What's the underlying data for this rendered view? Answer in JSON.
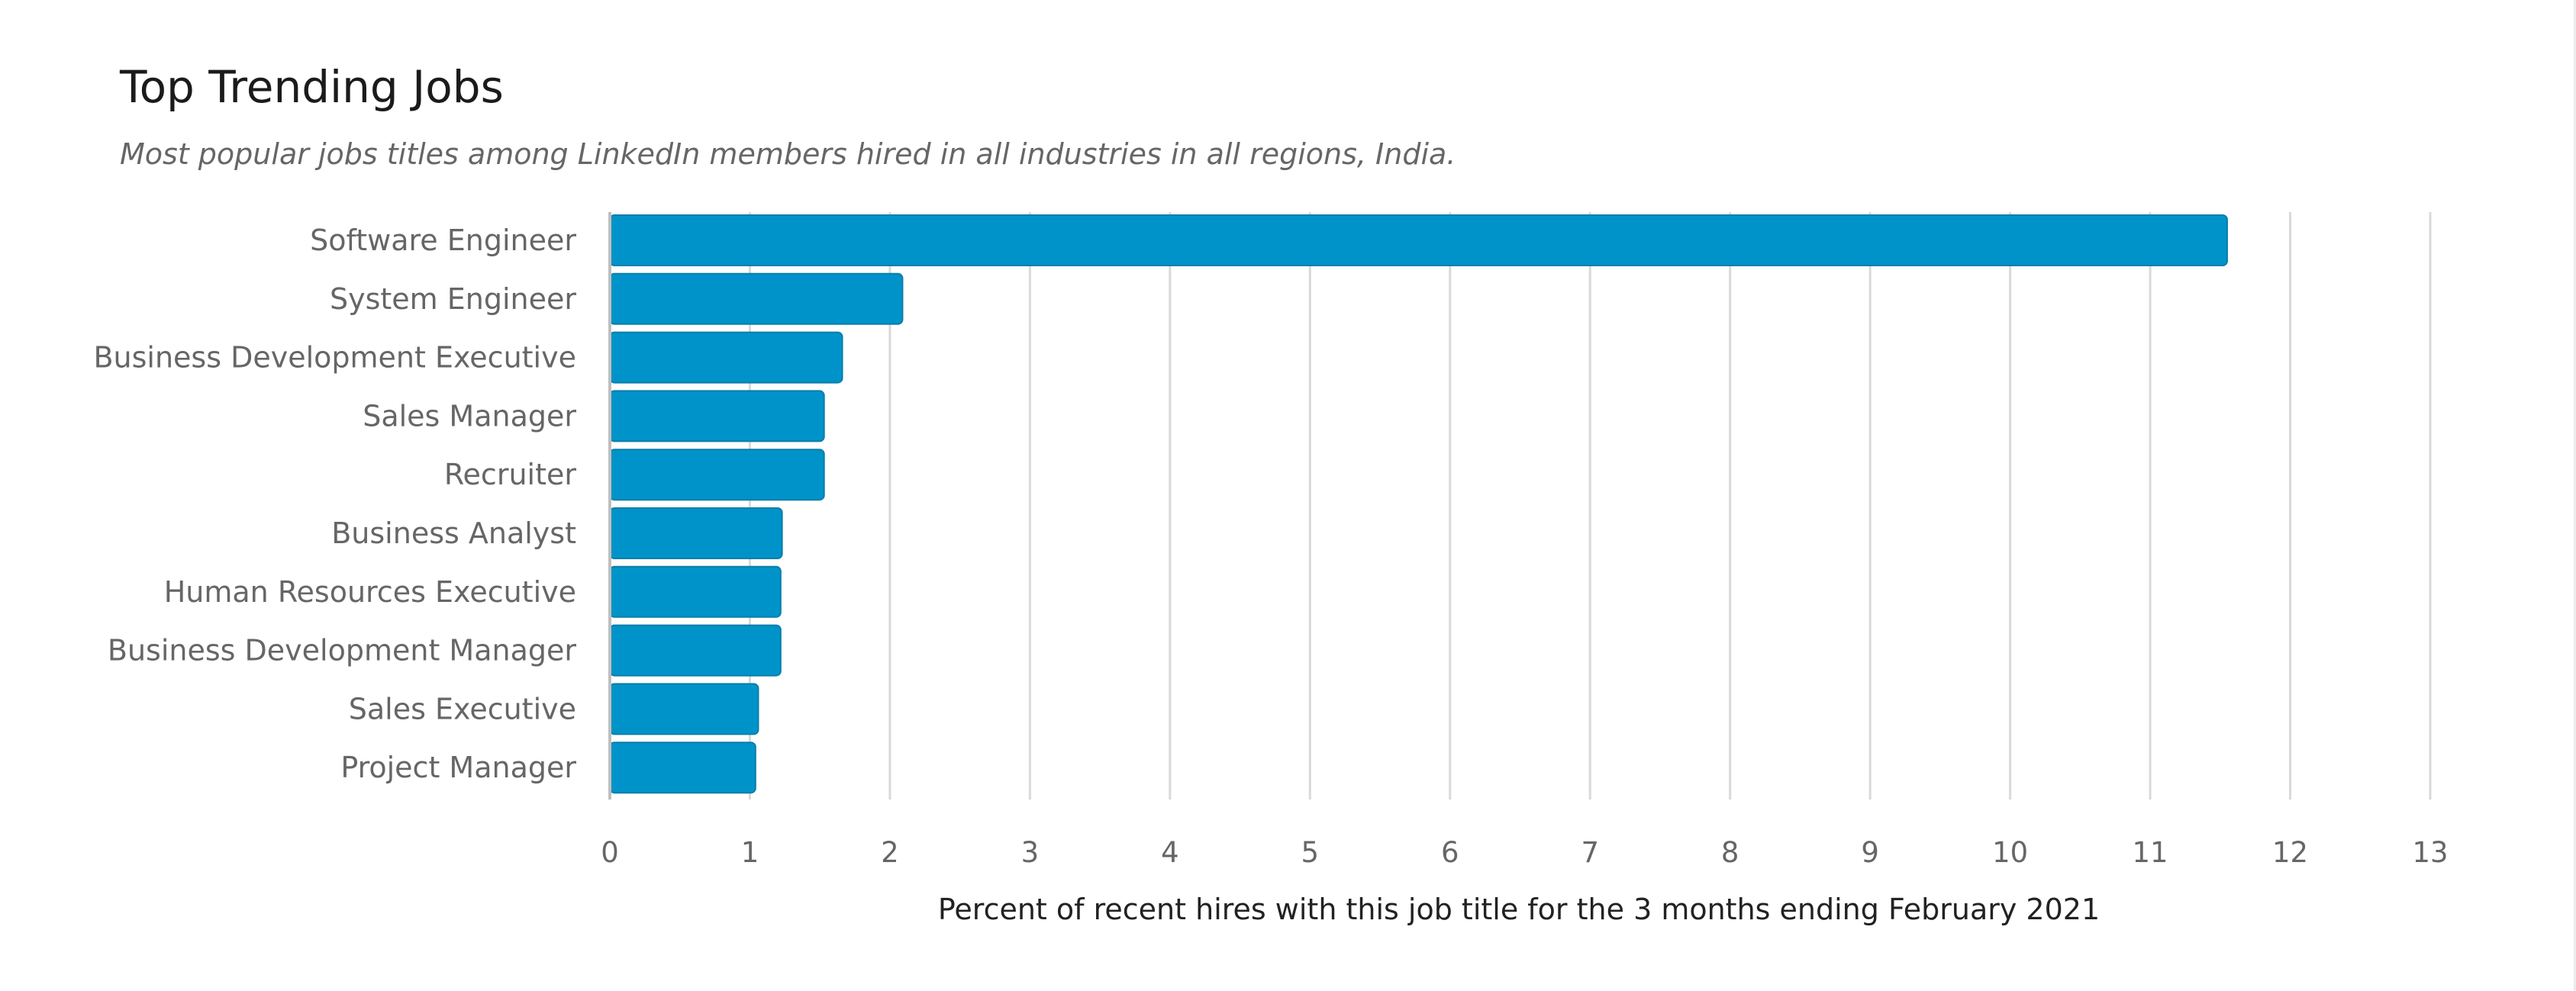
{
  "header": {
    "title": "Top Trending Jobs",
    "subtitle": "Most popular jobs titles among LinkedIn members hired in all industries in all regions, India."
  },
  "colors": {
    "bar": "#0093c9",
    "bar_stroke": "#0a7fab",
    "grid": "#d9d9d9",
    "axis": "#bfbfbf"
  },
  "chart_data": {
    "type": "bar",
    "orientation": "horizontal",
    "title": "Top Trending Jobs",
    "subtitle": "Most popular jobs titles among LinkedIn members hired in all industries in all regions, India.",
    "xlabel": "Percent of recent hires with this job title for the 3 months ending February 2021",
    "ylabel": "",
    "categories": [
      "Software Engineer",
      "System Engineer",
      "Business Development Executive",
      "Sales Manager",
      "Recruiter",
      "Business Analyst",
      "Human Resources Executive",
      "Business Development Manager",
      "Sales Executive",
      "Project Manager"
    ],
    "values": [
      11.55,
      2.09,
      1.66,
      1.53,
      1.53,
      1.23,
      1.22,
      1.22,
      1.06,
      1.04
    ],
    "xlim": [
      0,
      13
    ],
    "xticks": [
      "0",
      "1",
      "2",
      "3",
      "4",
      "5",
      "6",
      "7",
      "8",
      "9",
      "10",
      "11",
      "12",
      "13"
    ],
    "grid": true,
    "legend": "none"
  }
}
